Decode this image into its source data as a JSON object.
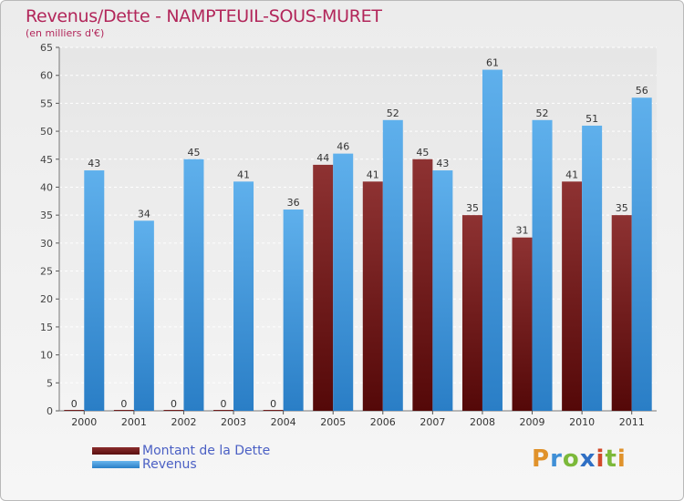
{
  "header": {
    "title": "Revenus/Dette - NAMPTEUIL-SOUS-MURET",
    "subtitle": "(en milliers d'€)"
  },
  "colors": {
    "debt": "#8a2c2c",
    "revenue": "#55a7e6",
    "title": "#b2265a",
    "legend_text": "#4b60c4"
  },
  "chart_data": {
    "type": "bar",
    "title": "Revenus/Dette - NAMPTEUIL-SOUS-MURET",
    "subtitle": "(en milliers d'€)",
    "categories": [
      "2000",
      "2001",
      "2002",
      "2003",
      "2004",
      "2005",
      "2006",
      "2007",
      "2008",
      "2009",
      "2010",
      "2011"
    ],
    "series": [
      {
        "name": "Montant de la Dette",
        "values": [
          0,
          0,
          0,
          0,
          0,
          44,
          41,
          45,
          35,
          31,
          41,
          35
        ]
      },
      {
        "name": "Revenus",
        "values": [
          43,
          34,
          45,
          41,
          36,
          46,
          52,
          43,
          61,
          52,
          51,
          56
        ]
      }
    ],
    "ylim": [
      0,
      65
    ],
    "yticks": [
      0,
      5,
      10,
      15,
      20,
      25,
      30,
      35,
      40,
      45,
      50,
      55,
      60,
      65
    ],
    "grid": true,
    "legend": "bottom-left",
    "data_labels": true
  },
  "legend": {
    "items": [
      {
        "label": "Montant de la Dette"
      },
      {
        "label": "Revenus"
      }
    ]
  },
  "logo": {
    "letters": [
      "P",
      "r",
      "o",
      "x",
      "i",
      "t",
      "i"
    ]
  }
}
